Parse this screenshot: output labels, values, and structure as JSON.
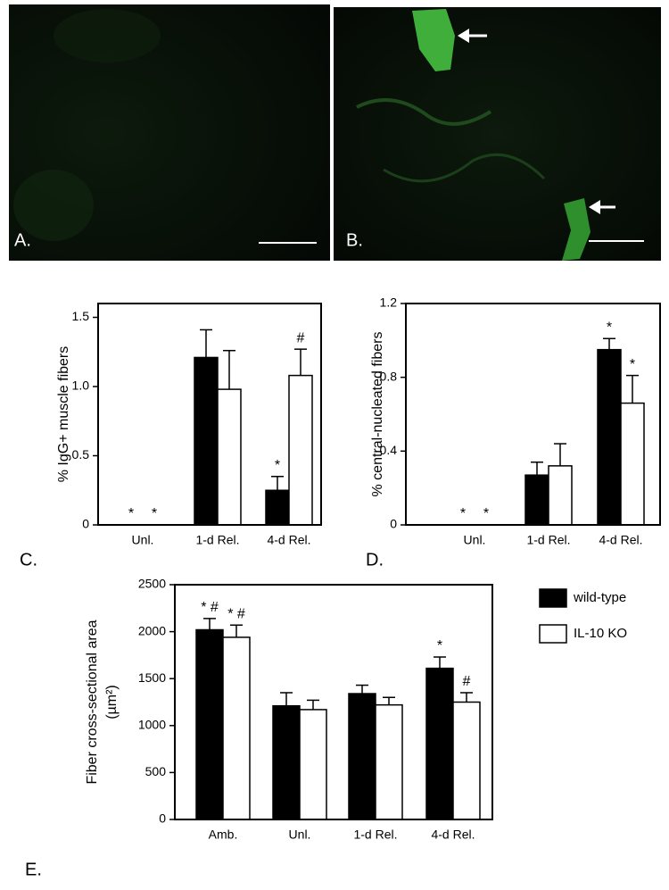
{
  "images": [
    {
      "label": "A."
    },
    {
      "label": "B."
    }
  ],
  "chart_data": [
    {
      "type": "bar",
      "panel": "C.",
      "ylabel": "% IgG+ muscle fibers",
      "categories": [
        "Unl.",
        "1-d Rel.",
        "4-d Rel."
      ],
      "series": [
        {
          "color": "#000000",
          "values": [
            0,
            1.21,
            0.25
          ],
          "errors": [
            null,
            0.2,
            0.1
          ],
          "annotations": [
            "*",
            null,
            "*"
          ]
        },
        {
          "color": "#ffffff",
          "values": [
            0,
            0.98,
            1.08
          ],
          "errors": [
            null,
            0.28,
            0.19
          ],
          "annotations": [
            "*",
            null,
            "#"
          ]
        }
      ],
      "ylim": [
        0,
        1.6
      ],
      "yticks": [
        0,
        0.5,
        {
          "value": 1,
          "label": "1.0"
        },
        1.5
      ]
    },
    {
      "type": "bar",
      "panel": "D.",
      "ylabel": "% central-nucleated fibers",
      "categories": [
        "Unl.",
        "1-d Rel.",
        "4-d Rel."
      ],
      "series": [
        {
          "color": "#000000",
          "values": [
            0,
            0.27,
            0.95
          ],
          "errors": [
            null,
            0.07,
            0.06
          ],
          "annotations": [
            "*",
            null,
            "*"
          ]
        },
        {
          "color": "#ffffff",
          "values": [
            0,
            0.32,
            0.66
          ],
          "errors": [
            null,
            0.12,
            0.15
          ],
          "annotations": [
            "*",
            null,
            "*"
          ]
        }
      ],
      "ylim": [
        0,
        1.2
      ],
      "yticks": [
        0,
        0.4,
        0.8,
        1.2
      ]
    },
    {
      "type": "bar",
      "panel": "E.",
      "ylabel": "Fiber cross-sectional area",
      "ylabel2": "(µm²)",
      "categories": [
        "Amb.",
        "Unl.",
        "1-d Rel.",
        "4-d Rel."
      ],
      "series": [
        {
          "name": "wild-type",
          "color": "#000000",
          "values": [
            2020,
            1210,
            1340,
            1610
          ],
          "errors": [
            120,
            140,
            90,
            120
          ],
          "annotations": [
            "* #",
            null,
            null,
            "*"
          ]
        },
        {
          "name": "IL-10 KO",
          "color": "#ffffff",
          "values": [
            1940,
            1170,
            1220,
            1250
          ],
          "errors": [
            130,
            100,
            80,
            100
          ],
          "annotations": [
            "* #",
            null,
            null,
            "#"
          ]
        }
      ],
      "ylim": [
        0,
        2500
      ],
      "yticks": [
        0,
        500,
        1000,
        1500,
        2000,
        2500
      ],
      "legend": "right"
    }
  ]
}
